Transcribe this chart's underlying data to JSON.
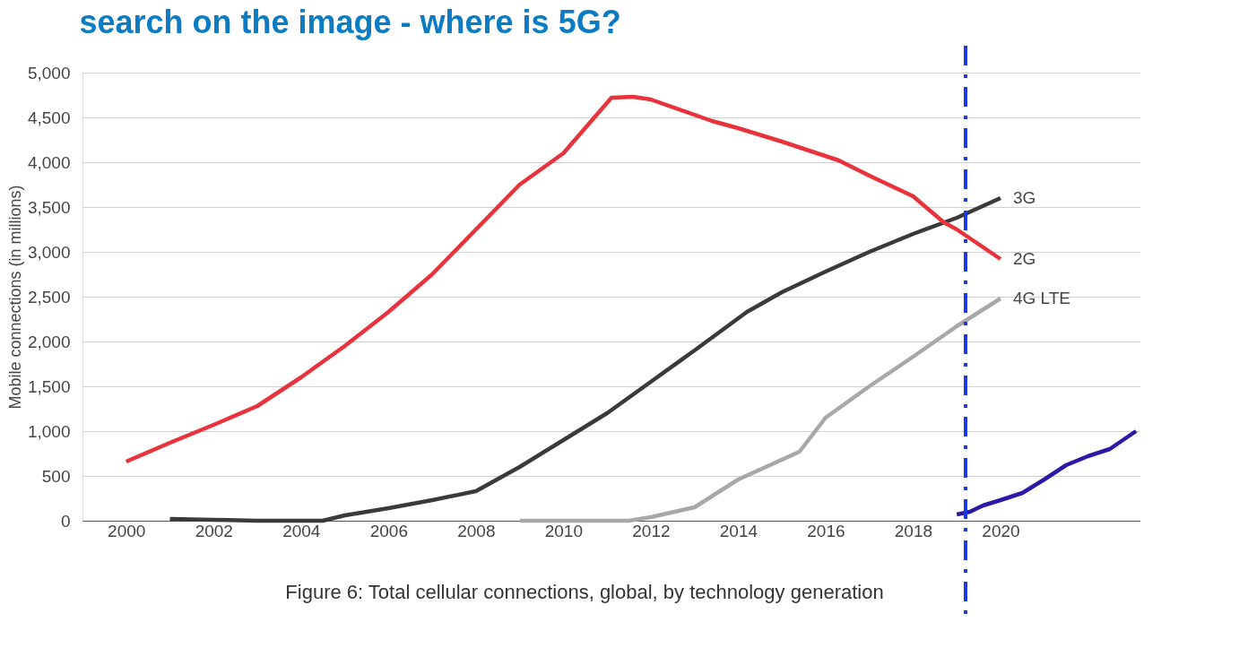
{
  "chart_data": {
    "type": "line",
    "title": "search on the image - where is 5G?",
    "ylabel": "Mobile connections (in millions)",
    "annotations": [
      "Figure 6: Total cellular connections, global, by technology generation"
    ],
    "xlim": [
      1999,
      2023.2
    ],
    "xticks": [
      2000,
      2002,
      2004,
      2006,
      2008,
      2010,
      2012,
      2014,
      2016,
      2018,
      2020
    ],
    "ylim": [
      0,
      5000
    ],
    "yticks": [
      0,
      500,
      {
        "value": 1000,
        "label": "1,000"
      },
      {
        "value": 1500,
        "label": "1,500"
      },
      {
        "value": 2000,
        "label": "2,000"
      },
      {
        "value": 2500,
        "label": "2,500"
      },
      {
        "value": 3000,
        "label": "3,000"
      },
      {
        "value": 3500,
        "label": "3,500"
      },
      {
        "value": 4000,
        "label": "4,000"
      },
      {
        "value": 4500,
        "label": "4,500"
      },
      {
        "value": 5000,
        "label": "5,000"
      }
    ],
    "grid": "y",
    "legend": false,
    "line_style": "solid",
    "marker": "none",
    "series": [
      {
        "name": "3G",
        "color": "#3a3a3a",
        "x": [
          2001,
          2002,
          2003,
          2004.5,
          2005,
          2006,
          2007,
          2008,
          2009,
          2010,
          2011,
          2012,
          2013,
          2014.2,
          2015,
          2016,
          2017,
          2018,
          2019,
          2020
        ],
        "values": [
          20,
          10,
          0,
          0,
          60,
          140,
          230,
          330,
          600,
          900,
          1200,
          1550,
          1900,
          2330,
          2550,
          2780,
          3000,
          3200,
          3380,
          3600
        ]
      },
      {
        "name": "2G",
        "color": "#e8323c",
        "x": [
          2000,
          2001,
          2002,
          2003,
          2004,
          2005,
          2006,
          2007,
          2008,
          2009,
          2010,
          2011.1,
          2011.6,
          2012,
          2013.4,
          2014,
          2015,
          2016.3,
          2017,
          2018,
          2018.7,
          2019,
          2020
        ],
        "values": [
          660,
          870,
          1070,
          1280,
          1600,
          1950,
          2330,
          2750,
          3250,
          3750,
          4100,
          4720,
          4730,
          4700,
          4460,
          4380,
          4230,
          4020,
          3850,
          3620,
          3330,
          3250,
          2920
        ]
      },
      {
        "name": "4G LTE",
        "color": "#a8a8a8",
        "x": [
          2009,
          2011.5,
          2012,
          2013,
          2014,
          2015.4,
          2016,
          2017,
          2018,
          2019,
          2020
        ],
        "values": [
          0,
          0,
          40,
          150,
          460,
          770,
          1150,
          1500,
          1830,
          2170,
          2480
        ]
      },
      {
        "color": "#2b1aa6",
        "x": [
          2019,
          2019.3,
          2019.6,
          2020,
          2020.5,
          2021,
          2021.5,
          2022,
          2022.5,
          2022.8,
          2023.1
        ],
        "values": [
          70,
          100,
          170,
          230,
          310,
          460,
          620,
          720,
          800,
          900,
          1000
        ]
      }
    ],
    "ref_lines": [
      {
        "axis": "x",
        "value": 2019.2,
        "color": "#1a3adf",
        "line_style": "dashed"
      }
    ]
  }
}
